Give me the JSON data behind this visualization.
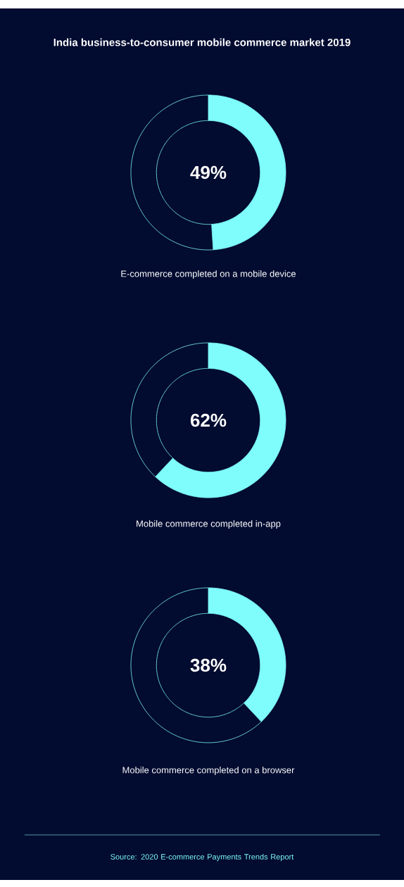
{
  "chart_data": [
    {
      "type": "donut",
      "title": "India business-to-consumer mobile commerce market 2019",
      "xlabel": "E-commerce completed on a mobile device",
      "categories": [
        null,
        null
      ],
      "values": [
        49,
        51
      ],
      "colors": [
        "#7ffcfc",
        "#020b30"
      ],
      "annotations": [
        "49%"
      ]
    },
    {
      "type": "donut",
      "xlabel": "Mobile commerce completed in-app",
      "categories": [
        null,
        null
      ],
      "values": [
        62,
        38
      ],
      "colors": [
        "#7ffcfc",
        "#020b30"
      ],
      "annotations": [
        "62%"
      ]
    },
    {
      "type": "donut",
      "xlabel": "Mobile commerce completed on a browser",
      "categories": [
        null,
        null
      ],
      "values": [
        38,
        62
      ],
      "colors": [
        "#7ffcfc",
        "#020b30"
      ],
      "annotations": [
        "38%",
        "Source: 2020 E-commerce Payments Trends Report"
      ]
    }
  ]
}
